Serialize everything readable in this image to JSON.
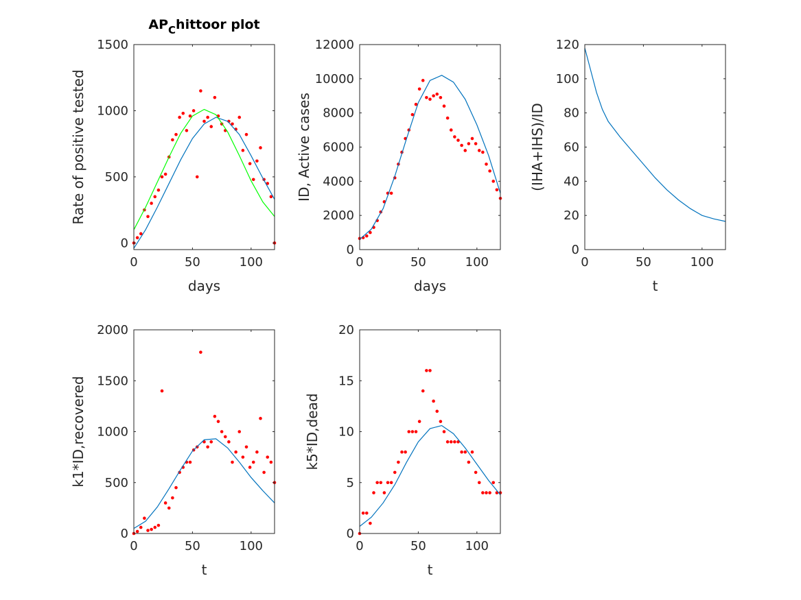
{
  "chart_data": [
    {
      "type": "line",
      "title": [
        "AP",
        "C",
        "hittoor plot"
      ],
      "x_label": "days",
      "y_label": "Rate of positive tested",
      "xlim": [
        0,
        120
      ],
      "ylim": [
        -50,
        1500
      ],
      "xticks": [
        0,
        50,
        100
      ],
      "yticks": [
        0,
        500,
        1000,
        1500
      ],
      "series": [
        {
          "mode": "markers",
          "color": "#ff0000",
          "x": [
            0,
            3,
            6,
            9,
            12,
            15,
            18,
            21,
            24,
            27,
            30,
            33,
            36,
            39,
            42,
            45,
            48,
            51,
            54,
            57,
            60,
            63,
            66,
            69,
            72,
            75,
            78,
            81,
            84,
            87,
            90,
            93,
            96,
            99,
            102,
            105,
            108,
            111,
            114,
            117,
            120
          ],
          "values": [
            0,
            40,
            70,
            250,
            200,
            300,
            350,
            400,
            500,
            520,
            650,
            780,
            820,
            950,
            980,
            850,
            960,
            1000,
            500,
            1150,
            920,
            950,
            880,
            1100,
            960,
            900,
            850,
            920,
            900,
            860,
            950,
            700,
            820,
            600,
            480,
            620,
            720,
            480,
            450,
            350,
            0
          ]
        },
        {
          "mode": "line",
          "color": "#0072bd",
          "x": [
            0,
            10,
            20,
            30,
            40,
            50,
            60,
            70,
            80,
            90,
            100,
            110,
            120
          ],
          "values": [
            -40,
            100,
            270,
            450,
            630,
            790,
            900,
            950,
            920,
            820,
            660,
            490,
            330
          ]
        },
        {
          "mode": "line",
          "color": "#00ff00",
          "x": [
            0,
            10,
            20,
            30,
            40,
            50,
            60,
            70,
            80,
            90,
            100,
            110,
            120
          ],
          "values": [
            100,
            270,
            460,
            650,
            830,
            960,
            1010,
            970,
            840,
            660,
            470,
            310,
            200
          ]
        }
      ]
    },
    {
      "type": "line",
      "x_label": "days",
      "y_label": "ID, Active cases",
      "xlim": [
        0,
        120
      ],
      "ylim": [
        0,
        12000
      ],
      "xticks": [
        0,
        50,
        100
      ],
      "yticks": [
        0,
        2000,
        4000,
        6000,
        8000,
        10000,
        12000
      ],
      "series": [
        {
          "mode": "markers",
          "color": "#ff0000",
          "x": [
            0,
            3,
            6,
            9,
            12,
            15,
            18,
            21,
            24,
            27,
            30,
            33,
            36,
            39,
            42,
            45,
            48,
            51,
            54,
            57,
            60,
            63,
            66,
            69,
            72,
            75,
            78,
            81,
            84,
            87,
            90,
            93,
            96,
            99,
            102,
            105,
            108,
            111,
            114,
            117,
            120
          ],
          "values": [
            650,
            700,
            800,
            1000,
            1300,
            1700,
            2200,
            2800,
            3300,
            3300,
            4200,
            5000,
            5700,
            6500,
            7000,
            7900,
            8500,
            9400,
            9900,
            8900,
            8800,
            9000,
            9100,
            8900,
            8400,
            7700,
            7000,
            6600,
            6400,
            6100,
            5800,
            6200,
            6500,
            6200,
            5800,
            5700,
            5000,
            4600,
            4000,
            3500,
            3000
          ]
        },
        {
          "mode": "line",
          "color": "#0072bd",
          "x": [
            0,
            10,
            20,
            30,
            40,
            50,
            60,
            70,
            80,
            90,
            100,
            110,
            120
          ],
          "values": [
            600,
            1200,
            2400,
            4300,
            6500,
            8600,
            9900,
            10200,
            9800,
            8800,
            7300,
            5500,
            3300
          ]
        }
      ]
    },
    {
      "type": "line",
      "x_label": "t",
      "y_label": "(IHA+IHS)/ID",
      "xlim": [
        0,
        120
      ],
      "ylim": [
        0,
        120
      ],
      "xticks": [
        0,
        50,
        100
      ],
      "yticks": [
        0,
        20,
        40,
        60,
        80,
        100,
        120
      ],
      "series": [
        {
          "mode": "line",
          "color": "#0072bd",
          "x": [
            0,
            5,
            10,
            15,
            20,
            30,
            40,
            50,
            60,
            70,
            80,
            90,
            100,
            110,
            120
          ],
          "values": [
            118,
            105,
            92,
            82,
            75,
            66,
            58,
            50,
            42,
            35,
            29,
            24,
            20,
            18,
            16.5
          ]
        }
      ]
    },
    {
      "type": "line",
      "x_label": "t",
      "y_label": "k1*ID,recovered",
      "xlim": [
        0,
        120
      ],
      "ylim": [
        0,
        2000
      ],
      "xticks": [
        0,
        50,
        100
      ],
      "yticks": [
        0,
        500,
        1000,
        1500,
        2000
      ],
      "series": [
        {
          "mode": "markers",
          "color": "#ff0000",
          "x": [
            0,
            3,
            6,
            9,
            12,
            15,
            18,
            21,
            24,
            27,
            30,
            33,
            36,
            39,
            42,
            45,
            48,
            51,
            54,
            57,
            60,
            63,
            66,
            69,
            72,
            75,
            78,
            81,
            84,
            87,
            90,
            93,
            96,
            99,
            102,
            105,
            108,
            111,
            114,
            117,
            120
          ],
          "values": [
            0,
            20,
            60,
            150,
            30,
            40,
            60,
            80,
            1400,
            300,
            250,
            350,
            450,
            600,
            650,
            700,
            700,
            820,
            850,
            1780,
            900,
            850,
            900,
            1150,
            1100,
            1000,
            950,
            900,
            700,
            800,
            1000,
            750,
            850,
            650,
            700,
            800,
            1130,
            600,
            750,
            700,
            500
          ]
        },
        {
          "mode": "line",
          "color": "#0072bd",
          "x": [
            0,
            10,
            20,
            30,
            40,
            50,
            60,
            70,
            80,
            90,
            100,
            110,
            120
          ],
          "values": [
            50,
            120,
            260,
            440,
            630,
            810,
            920,
            930,
            840,
            700,
            550,
            420,
            300
          ]
        }
      ]
    },
    {
      "type": "line",
      "x_label": "t",
      "y_label": "k5*ID,dead",
      "xlim": [
        0,
        120
      ],
      "ylim": [
        0,
        20
      ],
      "xticks": [
        0,
        50,
        100
      ],
      "yticks": [
        0,
        5,
        10,
        15,
        20
      ],
      "series": [
        {
          "mode": "markers",
          "color": "#ff0000",
          "x": [
            0,
            3,
            6,
            9,
            12,
            15,
            18,
            21,
            24,
            27,
            30,
            33,
            36,
            39,
            42,
            45,
            48,
            51,
            54,
            57,
            60,
            63,
            66,
            69,
            72,
            75,
            78,
            81,
            84,
            87,
            90,
            93,
            96,
            99,
            102,
            105,
            108,
            111,
            114,
            117,
            120
          ],
          "values": [
            0,
            2,
            2,
            1,
            4,
            5,
            5,
            4,
            5,
            5,
            6,
            7,
            8,
            8,
            10,
            10,
            10,
            11,
            14,
            16,
            16,
            13,
            12,
            11,
            10,
            9,
            9,
            9,
            9,
            8,
            8,
            7,
            8,
            6,
            5,
            4,
            4,
            4,
            5,
            4,
            4
          ]
        },
        {
          "mode": "line",
          "color": "#0072bd",
          "x": [
            0,
            10,
            20,
            30,
            40,
            50,
            60,
            70,
            80,
            90,
            100,
            110,
            120
          ],
          "values": [
            0.7,
            1.6,
            3.0,
            4.8,
            7,
            9,
            10.3,
            10.6,
            9.8,
            8.4,
            6.8,
            5.2,
            3.8
          ]
        }
      ]
    }
  ]
}
